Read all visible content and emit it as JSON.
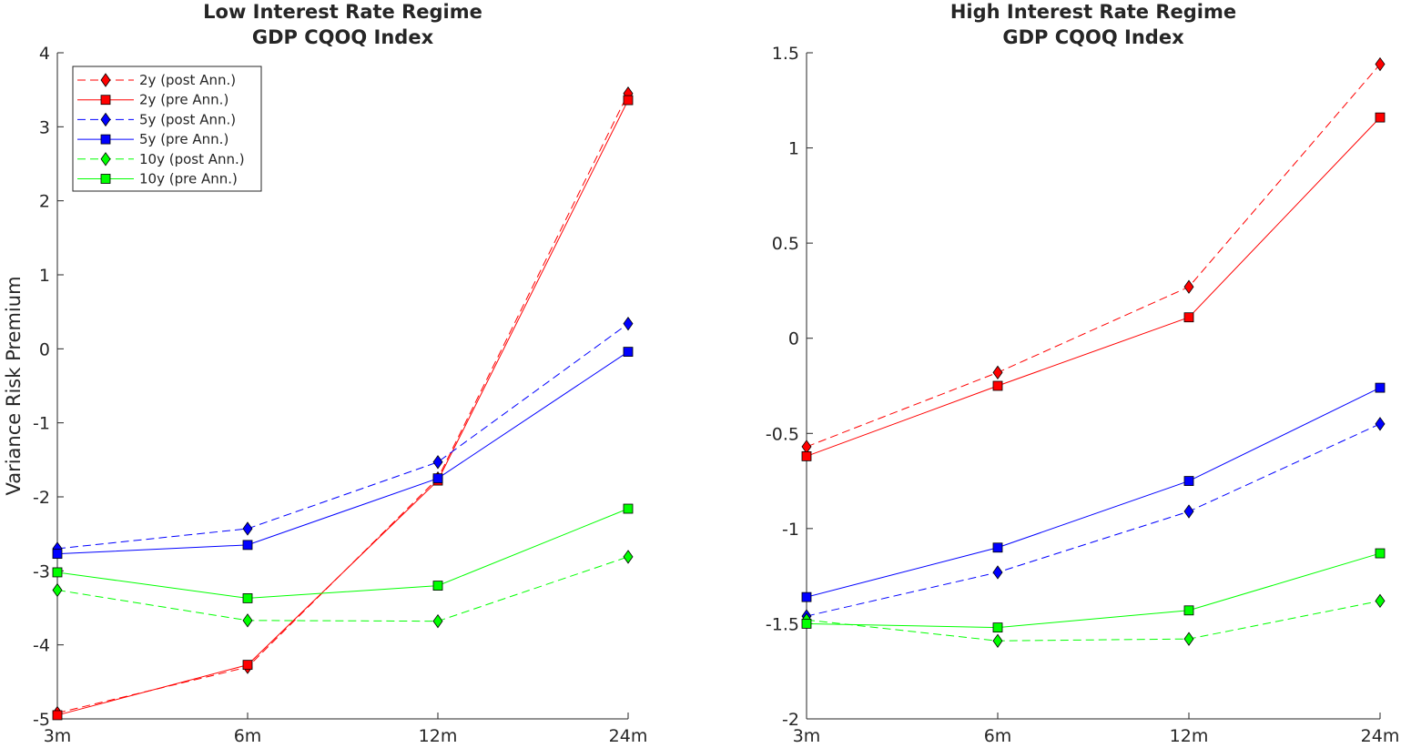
{
  "chart_data": [
    {
      "type": "line",
      "title": [
        "Low Interest Rate Regime",
        "GDP CQOQ Index"
      ],
      "xlabel": "",
      "ylabel": "Variance Risk Premium",
      "categories": [
        "3m",
        "6m",
        "12m",
        "24m"
      ],
      "ylim": [
        -5,
        4
      ],
      "yticks": [
        -5,
        -4,
        -3,
        -2,
        -1,
        0,
        1,
        2,
        3,
        4
      ],
      "ytick_labels": [
        "-5",
        "-4",
        "-3",
        "-2",
        "-1",
        "0",
        "1",
        "2",
        "3",
        "4"
      ],
      "grid": false,
      "legend": "top-left",
      "series": [
        {
          "name": "2y (post Ann.)",
          "color": "#ff0000",
          "dash": true,
          "marker": "diamond",
          "values": [
            -4.92,
            -4.3,
            -1.75,
            3.45
          ]
        },
        {
          "name": "2y (pre Ann.)",
          "color": "#ff0000",
          "dash": false,
          "marker": "square",
          "values": [
            -4.95,
            -4.27,
            -1.78,
            3.36
          ]
        },
        {
          "name": "5y (post Ann.)",
          "color": "#0000ff",
          "dash": true,
          "marker": "diamond",
          "values": [
            -2.7,
            -2.43,
            -1.53,
            0.34
          ]
        },
        {
          "name": "5y (pre Ann.)",
          "color": "#0000ff",
          "dash": false,
          "marker": "square",
          "values": [
            -2.77,
            -2.65,
            -1.75,
            -0.04
          ]
        },
        {
          "name": "10y (post Ann.)",
          "color": "#00ff00",
          "dash": true,
          "marker": "diamond",
          "values": [
            -3.26,
            -3.67,
            -3.68,
            -2.81
          ]
        },
        {
          "name": "10y (pre Ann.)",
          "color": "#00ff00",
          "dash": false,
          "marker": "square",
          "values": [
            -3.02,
            -3.37,
            -3.2,
            -2.16
          ]
        }
      ]
    },
    {
      "type": "line",
      "title": [
        "High Interest Rate Regime",
        "GDP CQOQ Index"
      ],
      "xlabel": "",
      "ylabel": "",
      "categories": [
        "3m",
        "6m",
        "12m",
        "24m"
      ],
      "ylim": [
        -2,
        1.5
      ],
      "yticks": [
        -2,
        -1.5,
        -1,
        -0.5,
        0,
        0.5,
        1,
        1.5
      ],
      "ytick_labels": [
        "-2",
        "-1.5",
        "-1",
        "-0.5",
        "0",
        "0.5",
        "1",
        "1.5"
      ],
      "grid": false,
      "series": [
        {
          "name": "2y (post Ann.)",
          "color": "#ff0000",
          "dash": true,
          "marker": "diamond",
          "values": [
            -0.57,
            -0.18,
            0.27,
            1.44
          ]
        },
        {
          "name": "2y (pre Ann.)",
          "color": "#ff0000",
          "dash": false,
          "marker": "square",
          "values": [
            -0.62,
            -0.25,
            0.11,
            1.16
          ]
        },
        {
          "name": "5y (post Ann.)",
          "color": "#0000ff",
          "dash": true,
          "marker": "diamond",
          "values": [
            -1.46,
            -1.23,
            -0.91,
            -0.45
          ]
        },
        {
          "name": "5y (pre Ann.)",
          "color": "#0000ff",
          "dash": false,
          "marker": "square",
          "values": [
            -1.36,
            -1.1,
            -0.75,
            -0.26
          ]
        },
        {
          "name": "10y (post Ann.)",
          "color": "#00ff00",
          "dash": true,
          "marker": "diamond",
          "values": [
            -1.48,
            -1.59,
            -1.58,
            -1.38
          ]
        },
        {
          "name": "10y (pre Ann.)",
          "color": "#00ff00",
          "dash": false,
          "marker": "square",
          "values": [
            -1.5,
            -1.52,
            -1.43,
            -1.13
          ]
        }
      ]
    }
  ]
}
